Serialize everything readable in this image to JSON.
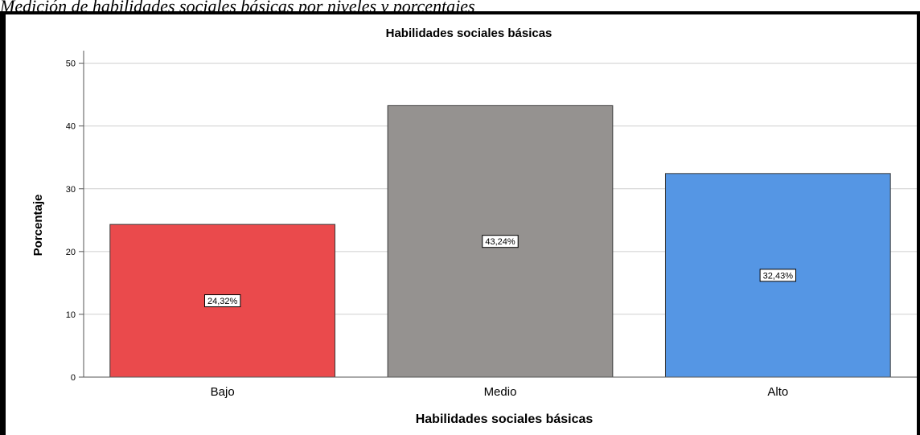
{
  "caption": "Medición de habilidades sociales básicas por niveles y porcentajes",
  "chart_data": {
    "type": "bar",
    "title": "Habilidades sociales básicas",
    "xlabel": "Habilidades sociales básicas",
    "ylabel": "Porcentaje",
    "ylim": [
      0,
      52
    ],
    "yticks": [
      0,
      10,
      20,
      30,
      40,
      50
    ],
    "grid": true,
    "categories": [
      "Bajo",
      "Medio",
      "Alto"
    ],
    "values": [
      24.32,
      43.24,
      32.43
    ],
    "data_labels": [
      "24,32%",
      "43,24%",
      "32,43%"
    ],
    "colors": [
      "#ea4a4c",
      "#959290",
      "#5596e4"
    ]
  }
}
